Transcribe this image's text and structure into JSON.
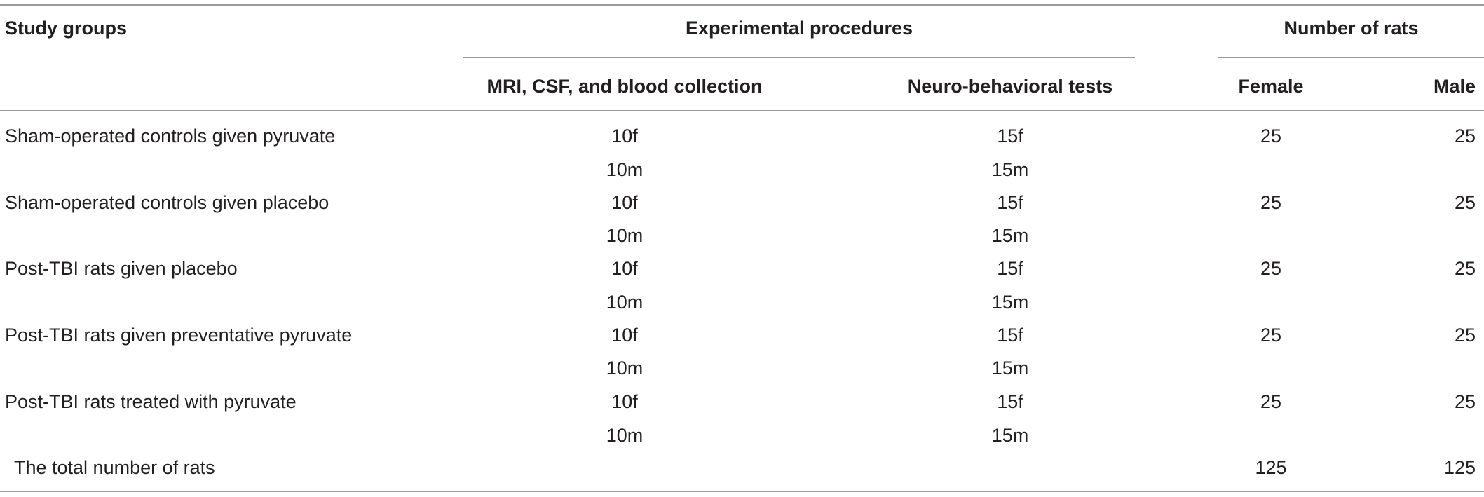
{
  "header": {
    "study_groups": "Study groups",
    "experimental_procedures": "Experimental procedures",
    "number_of_rats": "Number of rats",
    "mri_csf_blood": "MRI, CSF, and blood collection",
    "neuro_behavioral": "Neuro-behavioral tests",
    "female": "Female",
    "male": "Male"
  },
  "rows": [
    {
      "group": "Sham-operated controls given pyruvate",
      "mri_f": "10f",
      "mri_m": "10m",
      "neuro_f": "15f",
      "neuro_m": "15m",
      "female": "25",
      "male": "25"
    },
    {
      "group": "Sham-operated controls given placebo",
      "mri_f": "10f",
      "mri_m": "10m",
      "neuro_f": "15f",
      "neuro_m": "15m",
      "female": "25",
      "male": "25"
    },
    {
      "group": "Post-TBI rats given placebo",
      "mri_f": "10f",
      "mri_m": "10m",
      "neuro_f": "15f",
      "neuro_m": "15m",
      "female": "25",
      "male": "25"
    },
    {
      "group": "Post-TBI rats given preventative pyruvate",
      "mri_f": "10f",
      "mri_m": "10m",
      "neuro_f": "15f",
      "neuro_m": "15m",
      "female": "25",
      "male": "25"
    },
    {
      "group": "Post-TBI rats treated with pyruvate",
      "mri_f": "10f",
      "mri_m": "10m",
      "neuro_f": "15f",
      "neuro_m": "15m",
      "female": "25",
      "male": "25"
    }
  ],
  "total": {
    "label": "The total number of rats",
    "female": "125",
    "male": "125"
  }
}
